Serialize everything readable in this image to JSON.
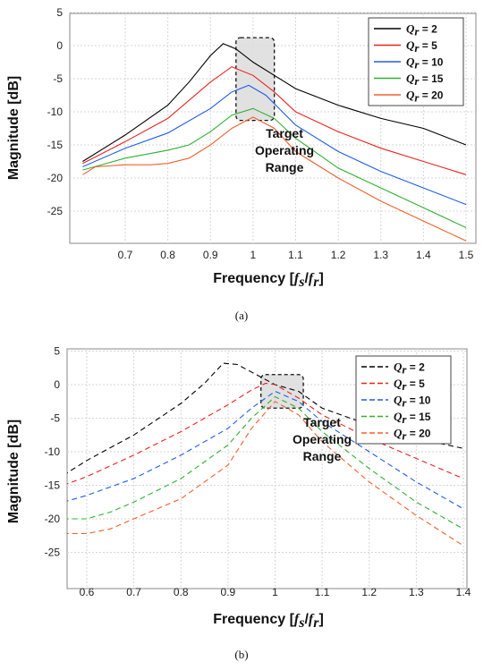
{
  "chart_data": [
    {
      "type": "line",
      "panel_label": "(a)",
      "ylabel": "Magnitude [dB]",
      "xlabel_text": "Frequency ",
      "xlabel_math": "[fs/fr]",
      "ylim": [
        -30,
        5
      ],
      "y_ticks": [
        "5",
        "0",
        "-5",
        "-10",
        "-15",
        "-20",
        "-25"
      ],
      "x_ticks": [
        "0.7",
        "0.8",
        "0.9",
        "1",
        "1.1",
        "1.2",
        "1.3",
        "1.4",
        "1.5"
      ],
      "grid": true,
      "legend_position": "top-right",
      "line_style": "solid",
      "annotation": [
        "Target",
        "Operating",
        "Range"
      ],
      "highlight_x_range": [
        0.96,
        1.05
      ],
      "highlight_y_range": [
        -11.3,
        1.2
      ],
      "series": [
        {
          "name": "Qr = 2",
          "color": "#000000",
          "x": [
            0.6,
            0.7,
            0.8,
            0.85,
            0.9,
            0.93,
            0.96,
            1.0,
            1.05,
            1.1,
            1.2,
            1.3,
            1.4,
            1.5
          ],
          "y": [
            -17.5,
            -13.5,
            -9,
            -5.5,
            -1.5,
            0.3,
            -0.5,
            -2.5,
            -4.5,
            -6.5,
            -9,
            -11,
            -12.5,
            -15
          ]
        },
        {
          "name": "Qr = 5",
          "color": "#e8231f",
          "x": [
            0.6,
            0.7,
            0.8,
            0.9,
            0.95,
            1.0,
            1.05,
            1.1,
            1.2,
            1.3,
            1.4,
            1.5
          ],
          "y": [
            -17.8,
            -14.5,
            -11,
            -5.5,
            -3.2,
            -4.5,
            -7,
            -10,
            -13,
            -15.5,
            -17.5,
            -19.5
          ]
        },
        {
          "name": "Qr = 10",
          "color": "#1f5ee8",
          "x": [
            0.6,
            0.7,
            0.8,
            0.9,
            0.95,
            0.99,
            1.03,
            1.1,
            1.2,
            1.3,
            1.4,
            1.5
          ],
          "y": [
            -18.3,
            -15.5,
            -13.2,
            -9.5,
            -7,
            -6,
            -7.5,
            -12,
            -16,
            -19,
            -21.5,
            -24
          ]
        },
        {
          "name": "Qr = 15",
          "color": "#2fb12f",
          "x": [
            0.6,
            0.7,
            0.8,
            0.85,
            0.9,
            0.95,
            1.0,
            1.05,
            1.1,
            1.2,
            1.3,
            1.4,
            1.5
          ],
          "y": [
            -18.8,
            -17,
            -15.8,
            -15,
            -13,
            -10.5,
            -9.5,
            -11,
            -14,
            -18.5,
            -21.5,
            -24.5,
            -27.5
          ]
        },
        {
          "name": "Qr = 20",
          "color": "#f2602a",
          "x": [
            0.6,
            0.63,
            0.7,
            0.76,
            0.8,
            0.85,
            0.9,
            0.95,
            1.0,
            1.05,
            1.1,
            1.2,
            1.3,
            1.4,
            1.5
          ],
          "y": [
            -19.5,
            -18.3,
            -18,
            -18,
            -17.8,
            -17,
            -15,
            -12.5,
            -10.8,
            -12.5,
            -16,
            -20,
            -23.5,
            -26.5,
            -29.5
          ]
        }
      ]
    },
    {
      "type": "line",
      "panel_label": "(b)",
      "ylabel": "Magnitude [dB]",
      "xlabel_text": "Frequency ",
      "xlabel_math": "[fs/fr]",
      "ylim": [
        -30,
        5
      ],
      "y_ticks": [
        "5",
        "0",
        "-5",
        "-10",
        "-15",
        "-20",
        "-25"
      ],
      "x_ticks": [
        "0.6",
        "0.7",
        "0.8",
        "0.9",
        "1",
        "1.1",
        "1.2",
        "1.3",
        "1.4"
      ],
      "grid": true,
      "legend_position": "top-right",
      "line_style": "dashed",
      "annotation": [
        "Target",
        "Operating",
        "Range"
      ],
      "highlight_x_range": [
        0.97,
        1.06
      ],
      "highlight_y_range": [
        -3.5,
        1.5
      ],
      "series": [
        {
          "name": "Qr = 2",
          "color": "#000000",
          "x": [
            0.55,
            0.6,
            0.7,
            0.8,
            0.85,
            0.89,
            0.92,
            0.96,
            1.0,
            1.05,
            1.1,
            1.2,
            1.3,
            1.4
          ],
          "y": [
            -13.5,
            -11.3,
            -7.5,
            -2.8,
            0.2,
            3.2,
            3,
            1.5,
            0,
            -1,
            -3.5,
            -6,
            -8,
            -9.5
          ]
        },
        {
          "name": "Qr = 5",
          "color": "#e8231f",
          "x": [
            0.55,
            0.6,
            0.7,
            0.8,
            0.9,
            0.95,
            0.98,
            1.0,
            1.05,
            1.1,
            1.2,
            1.3,
            1.4
          ],
          "y": [
            -15,
            -13.7,
            -10.5,
            -7,
            -3,
            -0.8,
            0.2,
            0,
            -2,
            -4.5,
            -8,
            -11,
            -14
          ]
        },
        {
          "name": "Qr = 10",
          "color": "#1f5ee8",
          "x": [
            0.55,
            0.6,
            0.7,
            0.8,
            0.9,
            0.95,
            1.0,
            1.05,
            1.1,
            1.2,
            1.3,
            1.4
          ],
          "y": [
            -17.5,
            -16.5,
            -14,
            -10.5,
            -6.5,
            -3.5,
            -1,
            -2.5,
            -5.5,
            -10,
            -14.5,
            -18.5
          ]
        },
        {
          "name": "Qr = 15",
          "color": "#2fb12f",
          "x": [
            0.55,
            0.6,
            0.65,
            0.7,
            0.8,
            0.9,
            0.95,
            1.0,
            1.05,
            1.1,
            1.2,
            1.3,
            1.4
          ],
          "y": [
            -20,
            -20,
            -19,
            -17.5,
            -14,
            -9,
            -5,
            -1.8,
            -3.5,
            -7,
            -12.5,
            -17.5,
            -21.5
          ]
        },
        {
          "name": "Qr = 20",
          "color": "#f2602a",
          "x": [
            0.55,
            0.6,
            0.65,
            0.7,
            0.8,
            0.9,
            0.95,
            1.0,
            1.05,
            1.1,
            1.2,
            1.3,
            1.4
          ],
          "y": [
            -22.2,
            -22.2,
            -21.5,
            -20,
            -17,
            -12,
            -6.5,
            -2.5,
            -4.5,
            -8.5,
            -14.5,
            -19.5,
            -24
          ]
        }
      ]
    }
  ]
}
